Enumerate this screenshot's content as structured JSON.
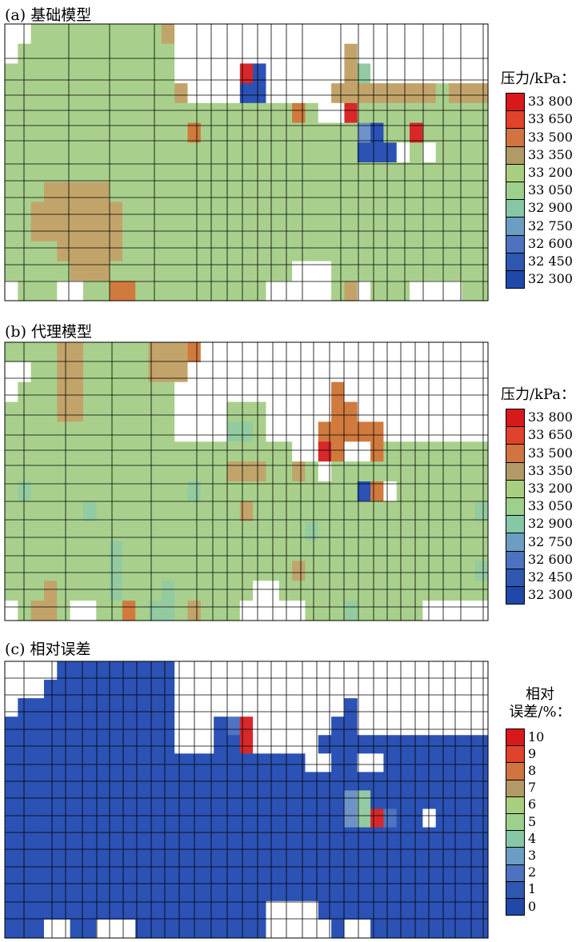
{
  "panels": [
    {
      "id": "a",
      "title": "(a) 基础模型",
      "colorbar": {
        "title": "压力/kPa：",
        "labels": [
          "33 800",
          "33 650",
          "33 500",
          "33 350",
          "33 200",
          "33 050",
          "32 900",
          "32 750",
          "32 600",
          "32 450",
          "32 300"
        ],
        "colors": [
          "#d7191c",
          "#e0422b",
          "#d2743f",
          "#b29a67",
          "#a8cf7f",
          "#9dd08d",
          "#86c7a6",
          "#6c9dc2",
          "#4d72bf",
          "#2e58b0",
          "#1f48a8"
        ]
      }
    },
    {
      "id": "b",
      "title": "(b) 代理模型",
      "colorbar": {
        "title": "压力/kPa：",
        "labels": [
          "33 800",
          "33 650",
          "33 500",
          "33 350",
          "33 200",
          "33 050",
          "32 900",
          "32 750",
          "32 600",
          "32 450",
          "32 300"
        ],
        "colors": [
          "#d7191c",
          "#e0422b",
          "#d2743f",
          "#b29a67",
          "#a8cf7f",
          "#9dd08d",
          "#86c7a6",
          "#6c9dc2",
          "#4d72bf",
          "#2e58b0",
          "#1f48a8"
        ]
      }
    },
    {
      "id": "c",
      "title": "(c) 相对误差",
      "colorbar": {
        "title": "相对误差/%：",
        "labels": [
          "10",
          "9",
          "8",
          "7",
          "6",
          "5",
          "4",
          "3",
          "2",
          "1",
          "0"
        ],
        "colors": [
          "#d7191c",
          "#e0422b",
          "#d2743f",
          "#b29a67",
          "#a8cf7f",
          "#9dd08d",
          "#86c7a6",
          "#6c9dc2",
          "#4d72bf",
          "#2e58b0",
          "#1f48a8"
        ]
      }
    }
  ],
  "chart_data": [
    {
      "type": "heatmap",
      "title": "(a) 基础模型",
      "colorbar_label": "压力/kPa：",
      "colorbar_ticks": [
        33800,
        33650,
        33500,
        33350,
        33200,
        33050,
        32900,
        32750,
        32600,
        32450,
        32300
      ],
      "colors": {
        "base": "#a8d08c",
        "teal": "#93cba0",
        "tan": "#c2a46a",
        "brown": "#d07a3e",
        "red": "#d8282a",
        "blue": "#2b52b4",
        "lightblue": "#6e93c8"
      },
      "grid_rows": [
        "wwLLLLLLLLLLtwwwwwwwwwwwwwwwwwwwwwwww",
        "wLLLLLLLLLLLLwwwwwwwwwwwwwtwwwwwwwwww",
        "LLLLLLLLLLLLLwwwwwrBwwwwwwtTwwwwwwwww",
        "LLLLLLLLLLLLLtwwwwBBwwwwwttttttttLttt",
        "LLLLLLLLLLLLLLLLLLLLLLbLwwrLLLLLLLLLL",
        "LLLLLLLLLLLLLLbLLLLLLLLLLLLkBLLrLLLLL",
        "LLLLLLLLLLLLLLLLLLLLLLLLLLLBBBwLwLLLL",
        "LLLLLLLLLLLLLLLLLLLLLLLLLLLLLLLLLLLLL",
        "LLLtttttLLLLLLLLLLLLLLLLLLLLLLLLLLLLL",
        "LLtttttttLLLLLLLLLLLLLLLLLLLLLLLLLLLL",
        "LLtttttttLLLLLLLLLLLLLLLLLLLLLLLLLLLL",
        "LLLLtttttLLLLLLLLLLLLLLLLLLLLLLLLLLLL",
        "LLLLLtttLLLLLLLLLLLLLLwwwLLLLLLLLLLLL",
        "wLLLwwLLbbLLLLLLLLLLwwwwwLtwLLLwwwwLL"
      ]
    },
    {
      "type": "heatmap",
      "title": "(b) 代理模型",
      "colorbar_label": "压力/kPa：",
      "colorbar_ticks": [
        33800,
        33650,
        33500,
        33350,
        33200,
        33050,
        32900,
        32750,
        32600,
        32450,
        32300
      ],
      "colors": {
        "base": "#a8d08c",
        "teal": "#93cba0",
        "tan": "#c2a46a",
        "brown": "#d07a3e",
        "red": "#d8282a",
        "blue": "#2b52b4",
        "lightblue": "#6e93c8"
      },
      "grid_rows": [
        "LLLLttLLLLLtttbwwwwwwwwwwwwwwwwwwwwww",
        "wwLLttLLLLLtttwwwwwwwwwwwwwwwwwwwwwww",
        "wLLLttLLLLLLLwwwwwwwwwwwwbwwwwwwwwwww",
        "LLLLttLLLLLLLwwwwLLLwwwwwbbwwwwwwwwww",
        "LLLLLLLLLLLLLwwwwTTLwwwwbbbbbwwwwwwww",
        "LLLLLLLLLLLLLLLLLLLLLLwwrbwwbLLLLLLLL",
        "LLLLLLLLLLLLLLLLLtttLLtLwLLLLLLLLLLLL",
        "LTLLLLLLLLLLLLTLLLLLLLLLLLLBbwLLLLLLL",
        "LLLLLLTLLLLLLLLLLLtLLLLLLLLLLLLLLLLLT",
        "LLLLLLLLLLLLLLLLLLLLLLLTLLLLLLLLLLLLL",
        "LLLLLLLLTLLLLLLLLLLLLLLLLLLLLLLLLLLLL",
        "LLLLLLLLTLLLLLLLLLLLLLtLLLLLLLLLLLLLT",
        "LLLtLLLLTLLLTLLLLLLwwLLLLLLLLLLLLLLLL",
        "wLttLwwLLbLTTLtLLLwwwwwLLLTLLLLLwwwww"
      ]
    },
    {
      "type": "heatmap",
      "title": "(c) 相对误差",
      "colorbar_label": "相对误差/%：",
      "colorbar_ticks": [
        10,
        9,
        8,
        7,
        6,
        5,
        4,
        3,
        2,
        1,
        0
      ],
      "colors": {
        "base": "#2b52b4",
        "red": "#d8282a",
        "lightblue": "#6e93c8",
        "teal": "#93cba0",
        "mid": "#4f74c2"
      },
      "grid_rows": [
        "wwwwBBBBBBBBBwwwwwwwwwwwwwwwwwwwwwwww",
        "wwwBBBBBBBBBBwwwwwwwwwwwwwwwwwwwwwwww",
        "wBBBBBBBBBBBBwwwwwwwwwwwwwBwwwwwwwwww",
        "BBBBBBBBBBBBBwwwBmrwwwwwwBBwwwwwwwwww",
        "BBBBBBBBBBBBBwwwBBrwwwwwBBBBBBBBBBBBB",
        "BBBBBBBBBBBBBBBBBBBBBBBwwBBwwBBBBBBBB",
        "BBBBBBBBBBBBBBBBBBBBBBBBBBBBBBBBBBBBB",
        "BBBBBBBBBBBBBBBBBBBBBBBBBBlTBBBBBBBBB",
        "BBBBBBBBBBBBBBBBBBBBBBBBBBlTrmBBwBBBB",
        "BBBBBBBBBBBBBBBBBBBBBBBBBBBBBBBBBBBBB",
        "BBBBBBBBBBBBBBBBBBBBBBBBBBBBBBBBBBBBB",
        "BBBBBBBBBBBBBBBBBBBBBBBBBBBBBBBBBBBBB",
        "BBBBBBBBBBBBBBBBBBBBBBBBBBBBBBBBBBBBB",
        "BBBBBBBBBBBBBBBBBBBBwwwwBBBBBBBBBBBBB",
        "BBBwwBBwwwBBBBBBBBBBwwwwwBwwBBBBBBBBB"
      ]
    }
  ]
}
